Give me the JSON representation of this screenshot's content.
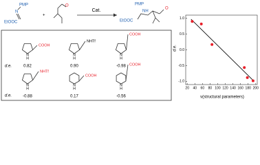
{
  "scheme": {
    "reactant1": {
      "pmp": "PMP",
      "n": "N",
      "ester": "EtOOC"
    },
    "plus": "+",
    "aldehyde_o": "O",
    "reagent": "Cat.",
    "product": {
      "ester": "EtOOC",
      "pmp": "PMP",
      "nh": "NH",
      "o": "O"
    }
  },
  "catalysts": {
    "row_label": "d.e.",
    "items": [
      {
        "substituent": "COOH",
        "nh": "N",
        "h": "H",
        "value": "0.82"
      },
      {
        "substituent": "NHTf",
        "nh": "N",
        "h": "H",
        "value": "0.90"
      },
      {
        "substituent": "COOH",
        "nh": "N",
        "h": "H",
        "value": "-0.98"
      },
      {
        "substituent": "NHTf",
        "nh": "N",
        "h": "H",
        "value": "-0.88"
      },
      {
        "substituent": "COOH",
        "nh": "N",
        "h": "H",
        "value": "0.17"
      },
      {
        "substituent": "COOH",
        "nh": "N",
        "h": "H",
        "value": "-0.56"
      }
    ]
  },
  "chart_data": {
    "type": "scatter",
    "xlabel": "ν(structural parameters)",
    "ylabel": "d.e.",
    "x": [
      33,
      57,
      85,
      170,
      178,
      193
    ],
    "y": [
      0.9,
      0.82,
      0.17,
      -0.56,
      -0.88,
      -0.98
    ],
    "color": "#e8202a",
    "fit": {
      "x": [
        30,
        196
      ],
      "y": [
        0.97,
        -1.0
      ],
      "color": "#000000"
    },
    "xlim": [
      16,
      204
    ],
    "ylim": [
      -1.1,
      1.1
    ],
    "xticks": [
      20,
      40,
      60,
      80,
      100,
      120,
      140,
      160,
      180,
      200
    ],
    "yticks": [
      {
        "value": -1,
        "label": "-1.0"
      },
      -0.5,
      {
        "value": 0,
        "label": "0.0"
      },
      0.5,
      {
        "value": 1,
        "label": "1.0"
      }
    ]
  }
}
